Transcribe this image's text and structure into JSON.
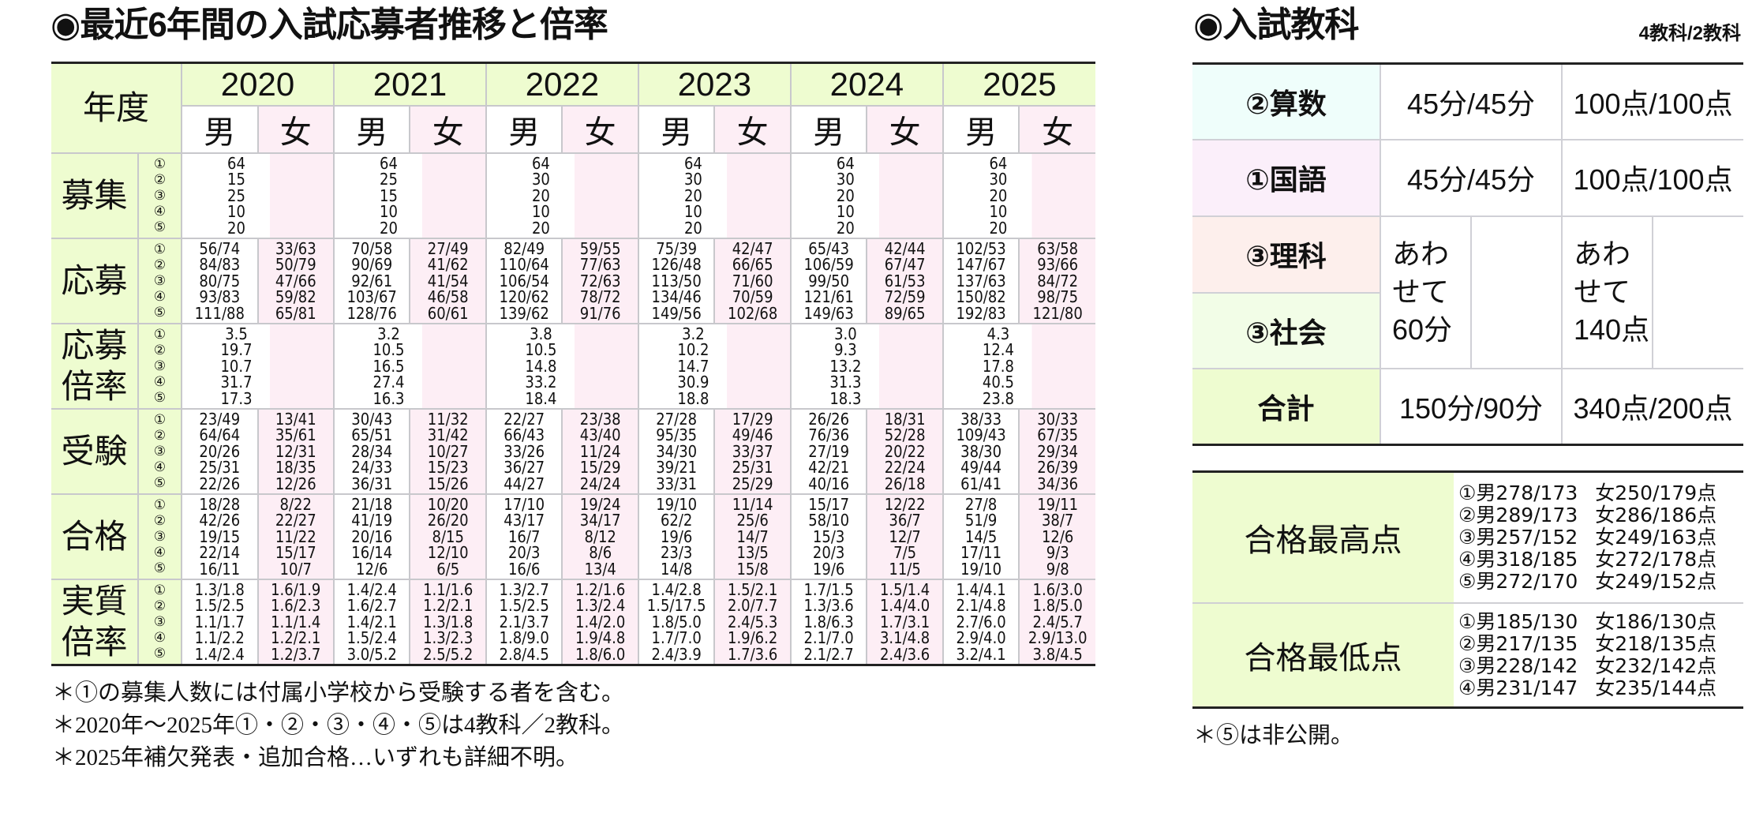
{
  "history": {
    "title": "◉最近6年間の入試応募者推移と倍率",
    "year_header_label": "年度",
    "male_label": "男",
    "female_label": "女",
    "years": [
      "2020",
      "2021",
      "2022",
      "2023",
      "2024",
      "2025"
    ],
    "exam_numbers": [
      "①",
      "②",
      "③",
      "④",
      "⑤"
    ],
    "rows": {
      "recruit": {
        "label": "募集",
        "by_year": [
          [
            "64",
            "15",
            "25",
            "10",
            "20"
          ],
          [
            "64",
            "25",
            "15",
            "10",
            "20"
          ],
          [
            "64",
            "30",
            "20",
            "10",
            "20"
          ],
          [
            "64",
            "30",
            "20",
            "10",
            "20"
          ],
          [
            "64",
            "30",
            "20",
            "10",
            "20"
          ],
          [
            "64",
            "30",
            "20",
            "10",
            "20"
          ]
        ]
      },
      "applicants": {
        "label": "応募",
        "by_year": [
          {
            "male": [
              "56/74",
              "84/83",
              "80/75",
              "93/83",
              "111/88"
            ],
            "female": [
              "33/63",
              "50/79",
              "47/66",
              "59/82",
              "65/81"
            ]
          },
          {
            "male": [
              "70/58",
              "90/69",
              "92/61",
              "103/67",
              "128/76"
            ],
            "female": [
              "27/49",
              "41/62",
              "41/54",
              "46/58",
              "60/61"
            ]
          },
          {
            "male": [
              "82/49",
              "110/64",
              "106/54",
              "120/62",
              "139/62"
            ],
            "female": [
              "59/55",
              "77/63",
              "72/63",
              "78/72",
              "91/76"
            ]
          },
          {
            "male": [
              "75/39",
              "126/48",
              "113/50",
              "134/46",
              "149/56"
            ],
            "female": [
              "42/47",
              "66/65",
              "71/60",
              "70/59",
              "102/68"
            ]
          },
          {
            "male": [
              "65/43",
              "106/59",
              "99/50",
              "121/61",
              "149/63"
            ],
            "female": [
              "42/44",
              "67/47",
              "61/53",
              "72/59",
              "89/65"
            ]
          },
          {
            "male": [
              "102/53",
              "147/67",
              "137/63",
              "150/82",
              "192/83"
            ],
            "female": [
              "63/58",
              "93/66",
              "84/72",
              "98/75",
              "121/80"
            ]
          }
        ]
      },
      "app_ratio": {
        "label_line1": "応募",
        "label_line2": "倍率",
        "by_year": [
          [
            "3.5",
            "19.7",
            "10.7",
            "31.7",
            "17.3"
          ],
          [
            "3.2",
            "10.5",
            "16.5",
            "27.4",
            "16.3"
          ],
          [
            "3.8",
            "10.5",
            "14.8",
            "33.2",
            "18.4"
          ],
          [
            "3.2",
            "10.2",
            "14.7",
            "30.9",
            "18.8"
          ],
          [
            "3.0",
            "9.3",
            "13.2",
            "31.3",
            "18.3"
          ],
          [
            "4.3",
            "12.4",
            "17.8",
            "40.5",
            "23.8"
          ]
        ]
      },
      "examinees": {
        "label": "受験",
        "by_year": [
          {
            "male": [
              "23/49",
              "64/64",
              "20/26",
              "25/31",
              "22/26"
            ],
            "female": [
              "13/41",
              "35/61",
              "12/31",
              "18/35",
              "12/26"
            ]
          },
          {
            "male": [
              "30/43",
              "65/51",
              "28/34",
              "24/33",
              "36/31"
            ],
            "female": [
              "11/32",
              "31/42",
              "10/27",
              "15/23",
              "15/26"
            ]
          },
          {
            "male": [
              "22/27",
              "66/43",
              "33/26",
              "36/27",
              "44/27"
            ],
            "female": [
              "23/38",
              "43/40",
              "11/24",
              "15/29",
              "24/24"
            ]
          },
          {
            "male": [
              "27/28",
              "95/35",
              "34/30",
              "39/21",
              "33/31"
            ],
            "female": [
              "17/29",
              "49/46",
              "33/37",
              "25/31",
              "25/29"
            ]
          },
          {
            "male": [
              "26/26",
              "76/36",
              "27/19",
              "42/21",
              "40/16"
            ],
            "female": [
              "18/31",
              "52/28",
              "20/22",
              "22/24",
              "26/18"
            ]
          },
          {
            "male": [
              "38/33",
              "109/43",
              "38/30",
              "49/44",
              "61/41"
            ],
            "female": [
              "30/33",
              "67/35",
              "29/34",
              "26/39",
              "34/36"
            ]
          }
        ]
      },
      "passed": {
        "label": "合格",
        "by_year": [
          {
            "male": [
              "18/28",
              "42/26",
              "19/15",
              "22/14",
              "16/11"
            ],
            "female": [
              "8/22",
              "22/27",
              "11/22",
              "15/17",
              "10/7"
            ]
          },
          {
            "male": [
              "21/18",
              "41/19",
              "20/16",
              "16/14",
              "12/6"
            ],
            "female": [
              "10/20",
              "26/20",
              "8/15",
              "12/10",
              "6/5"
            ]
          },
          {
            "male": [
              "17/10",
              "43/17",
              "16/7",
              "20/3",
              "16/6"
            ],
            "female": [
              "19/24",
              "34/17",
              "8/12",
              "8/6",
              "13/4"
            ]
          },
          {
            "male": [
              "19/10",
              "62/2",
              "19/6",
              "23/3",
              "14/8"
            ],
            "female": [
              "11/14",
              "25/6",
              "14/7",
              "13/5",
              "15/8"
            ]
          },
          {
            "male": [
              "15/17",
              "58/10",
              "15/3",
              "20/3",
              "19/6"
            ],
            "female": [
              "12/22",
              "36/7",
              "12/7",
              "7/5",
              "11/5"
            ]
          },
          {
            "male": [
              "27/8",
              "51/9",
              "14/5",
              "17/11",
              "19/10"
            ],
            "female": [
              "19/11",
              "38/7",
              "12/6",
              "9/3",
              "9/8"
            ]
          }
        ]
      },
      "real_ratio": {
        "label_line1": "実質",
        "label_line2": "倍率",
        "by_year": [
          {
            "male": [
              "1.3/1.8",
              "1.5/2.5",
              "1.1/1.7",
              "1.1/2.2",
              "1.4/2.4"
            ],
            "female": [
              "1.6/1.9",
              "1.6/2.3",
              "1.1/1.4",
              "1.2/2.1",
              "1.2/3.7"
            ]
          },
          {
            "male": [
              "1.4/2.4",
              "1.6/2.7",
              "1.4/2.1",
              "1.5/2.4",
              "3.0/5.2"
            ],
            "female": [
              "1.1/1.6",
              "1.2/2.1",
              "1.3/1.8",
              "1.3/2.3",
              "2.5/5.2"
            ]
          },
          {
            "male": [
              "1.3/2.7",
              "1.5/2.5",
              "2.1/3.7",
              "1.8/9.0",
              "2.8/4.5"
            ],
            "female": [
              "1.2/1.6",
              "1.3/2.4",
              "1.4/2.0",
              "1.9/4.8",
              "1.8/6.0"
            ]
          },
          {
            "male": [
              "1.4/2.8",
              "1.5/17.5",
              "1.8/5.0",
              "1.7/7.0",
              "2.4/3.9"
            ],
            "female": [
              "1.5/2.1",
              "2.0/7.7",
              "2.4/5.3",
              "1.9/6.2",
              "1.7/3.6"
            ]
          },
          {
            "male": [
              "1.7/1.5",
              "1.3/3.6",
              "1.8/6.3",
              "2.1/7.0",
              "2.1/2.7"
            ],
            "female": [
              "1.5/1.4",
              "1.4/4.0",
              "1.7/3.1",
              "3.1/4.8",
              "2.4/3.6"
            ]
          },
          {
            "male": [
              "1.4/4.1",
              "2.1/4.8",
              "2.7/6.0",
              "2.9/4.0",
              "3.2/4.1"
            ],
            "female": [
              "1.6/3.0",
              "1.8/5.0",
              "2.4/5.7",
              "2.9/13.0",
              "3.8/4.5"
            ]
          }
        ]
      }
    },
    "notes": [
      "＊①の募集人数には付属小学校から受験する者を含む。",
      "＊2020年～2025年①・②・③・④・⑤は4教科／2教科。",
      "＊2025年補欠発表・追加合格…いずれも詳細不明。"
    ]
  },
  "subjects": {
    "title": "◉入試教科",
    "subtitle": "4教科/2教科",
    "rows": [
      {
        "name": "②算数",
        "time": "45分/45分",
        "points": "100点/100点"
      },
      {
        "name": "①国語",
        "time": "45分/45分",
        "points": "100点/100点"
      },
      {
        "name": "③理科"
      },
      {
        "name": "③社会"
      },
      {
        "name": "合計",
        "time": "150分/90分",
        "points": "340点/200点"
      }
    ],
    "combined_time_lines": [
      "あわ",
      "せて",
      "60分"
    ],
    "combined_points_lines": [
      "あわ",
      "せて",
      "140点"
    ]
  },
  "scores": {
    "highest": {
      "label": "合格最高点",
      "lines": [
        {
          "m": "①男278/173",
          "f": "女250/179点"
        },
        {
          "m": "②男289/173",
          "f": "女286/186点"
        },
        {
          "m": "③男257/152",
          "f": "女249/163点"
        },
        {
          "m": "④男318/185",
          "f": "女272/178点"
        },
        {
          "m": "⑤男272/170",
          "f": "女249/152点"
        }
      ]
    },
    "lowest": {
      "label": "合格最低点",
      "lines": [
        {
          "m": "①男185/130",
          "f": "女186/130点"
        },
        {
          "m": "②男217/135",
          "f": "女218/135点"
        },
        {
          "m": "③男228/142",
          "f": "女232/142点"
        },
        {
          "m": "④男231/147",
          "f": "女235/144点"
        }
      ]
    },
    "note": "＊⑤は非公開。"
  }
}
